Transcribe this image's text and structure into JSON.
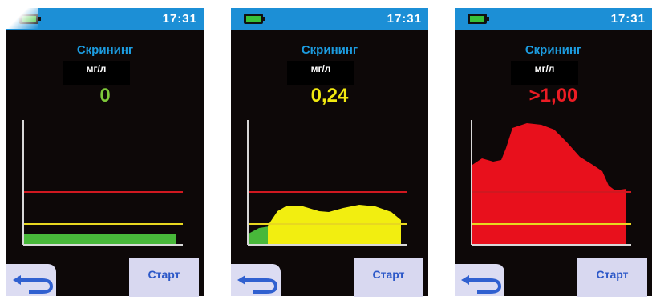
{
  "screens": [
    {
      "time": "17:31",
      "mode": "Скрининг",
      "unit": "мг/л",
      "reading": "0",
      "reading_color": "#7ec93a",
      "start_label": "Старт",
      "area_fill_color": "#48b83a"
    },
    {
      "time": "17:31",
      "mode": "Скрининг",
      "unit": "мг/л",
      "reading": "0,24",
      "reading_color": "#f2ea10",
      "start_label": "Старт",
      "area_fill_color": "#f2ee10"
    },
    {
      "time": "17:31",
      "mode": "Скрининг",
      "unit": "мг/л",
      "reading": ">1,00",
      "reading_color": "#ec1c24",
      "start_label": "Старт",
      "area_fill_color": "#e8101c"
    }
  ],
  "colors": {
    "status_bar": "#1c8fd6",
    "upper_threshold_line": "#d01820",
    "lower_threshold_line": "#e8d820",
    "axis": "#d8d8d8"
  },
  "icons": {
    "battery": "battery-icon",
    "back": "back-arrow-icon"
  }
}
